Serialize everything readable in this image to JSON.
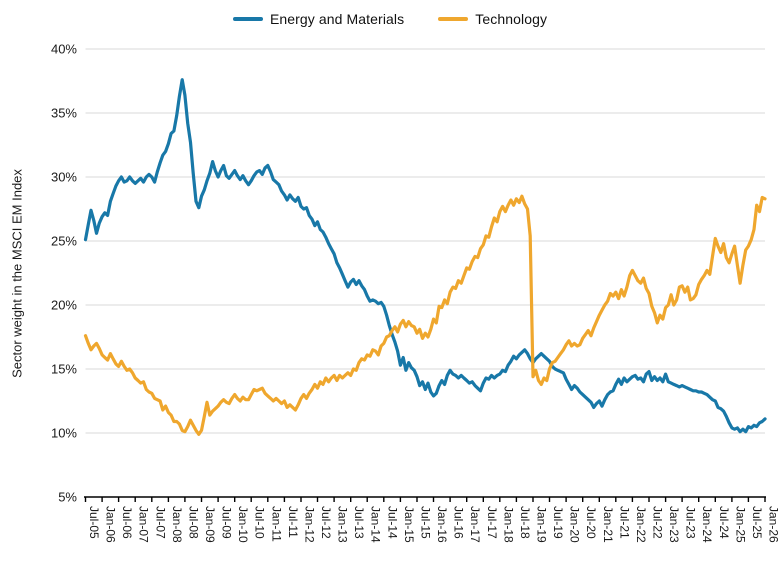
{
  "chart_data": {
    "type": "line",
    "title": "",
    "ylabel": "Sector weight in the MSCI EM Index",
    "xlabel": "",
    "ylim": [
      5,
      40
    ],
    "yticks": [
      "40%",
      "35%",
      "30%",
      "25%",
      "20%",
      "15%",
      "10%",
      "5%"
    ],
    "ytick_values": [
      40,
      35,
      30,
      25,
      20,
      15,
      10,
      5
    ],
    "grid": "horizontal-only",
    "legend_position": "top-center",
    "frequency": "monthly",
    "x_start": "Jul-2005",
    "x_end": "Jan-2026",
    "x_tick_labels": [
      "Jul-05",
      "Jan-06",
      "Jul-06",
      "Jan-07",
      "Jul-07",
      "Jan-08",
      "Jul-08",
      "Jan-09",
      "Jul-09",
      "Jan-10",
      "Jul-10",
      "Jan-11",
      "Jul-11",
      "Jan-12",
      "Jul-12",
      "Jan-13",
      "Jul-13",
      "Jan-14",
      "Jul-14",
      "Jan-15",
      "Jul-15",
      "Jan-16",
      "Jul-16",
      "Jan-17",
      "Jul-17",
      "Jan-18",
      "Jul-18",
      "Jan-19",
      "Jul-19",
      "Jan-20",
      "Jul-20",
      "Jan-21",
      "Jul-21",
      "Jan-22",
      "Jul-22",
      "Jan-23",
      "Jul-23",
      "Jan-24",
      "Jul-24",
      "Jan-25",
      "Jul-25",
      "Jan-26"
    ],
    "colors": {
      "axis": "#000000",
      "grid": "#d9d9d9",
      "tick_text": "#1a1a1a"
    },
    "series": [
      {
        "name": "Energy and Materials",
        "color": "#1878a8",
        "values": [
          25.1,
          26.3,
          27.4,
          26.6,
          25.6,
          26.4,
          26.9,
          27.2,
          27.0,
          28.1,
          28.7,
          29.3,
          29.7,
          30.0,
          29.6,
          29.7,
          30.0,
          29.7,
          29.5,
          29.7,
          29.9,
          29.6,
          30.0,
          30.2,
          30.0,
          29.6,
          30.4,
          31.1,
          31.7,
          32.0,
          32.6,
          33.4,
          33.6,
          34.8,
          36.3,
          37.6,
          36.4,
          34.2,
          32.7,
          30.3,
          28.1,
          27.6,
          28.5,
          29.0,
          29.7,
          30.3,
          31.2,
          30.5,
          30.0,
          30.5,
          30.9,
          30.1,
          29.9,
          30.2,
          30.5,
          30.1,
          29.8,
          30.1,
          29.7,
          29.4,
          29.7,
          30.1,
          30.4,
          30.5,
          30.2,
          30.7,
          30.9,
          30.4,
          29.8,
          29.6,
          29.4,
          28.9,
          28.6,
          28.2,
          28.6,
          28.3,
          28.1,
          28.4,
          27.7,
          27.5,
          27.6,
          27.0,
          26.7,
          26.2,
          26.5,
          25.9,
          25.7,
          25.3,
          24.8,
          24.4,
          24.0,
          23.3,
          22.9,
          22.4,
          21.9,
          21.4,
          21.8,
          22.0,
          21.6,
          21.9,
          21.5,
          21.2,
          20.7,
          20.3,
          20.4,
          20.3,
          20.1,
          20.2,
          19.9,
          19.2,
          18.4,
          17.7,
          17.1,
          16.4,
          15.3,
          15.9,
          14.9,
          15.5,
          15.1,
          14.9,
          14.4,
          13.7,
          14.0,
          13.4,
          13.9,
          13.2,
          12.9,
          13.1,
          13.7,
          14.1,
          13.8,
          14.5,
          14.9,
          14.6,
          14.5,
          14.3,
          14.5,
          14.3,
          14.1,
          13.9,
          14.0,
          13.7,
          13.5,
          13.3,
          13.9,
          14.3,
          14.2,
          14.5,
          14.3,
          14.5,
          14.6,
          14.9,
          14.8,
          15.3,
          15.6,
          16.0,
          15.8,
          16.1,
          16.3,
          16.5,
          16.2,
          15.8,
          15.5,
          15.8,
          16.0,
          16.2,
          16.0,
          15.8,
          15.6,
          15.2,
          15.0,
          14.9,
          14.8,
          14.7,
          14.2,
          13.8,
          13.4,
          13.7,
          13.5,
          13.2,
          13.0,
          12.8,
          12.6,
          12.4,
          12.0,
          12.3,
          12.5,
          12.1,
          12.6,
          13.0,
          13.2,
          13.3,
          13.8,
          14.2,
          13.8,
          14.3,
          14.0,
          14.2,
          14.4,
          14.5,
          14.2,
          14.3,
          14.0,
          14.6,
          14.8,
          14.1,
          14.4,
          14.1,
          14.3,
          14.0,
          14.6,
          14.0,
          13.9,
          13.8,
          13.7,
          13.6,
          13.7,
          13.6,
          13.5,
          13.4,
          13.3,
          13.3,
          13.2,
          13.2,
          13.1,
          13.0,
          12.8,
          12.6,
          12.5,
          12.0,
          11.9,
          11.7,
          11.3,
          10.8,
          10.4,
          10.3,
          10.4,
          10.1,
          10.3,
          10.1,
          10.5,
          10.4,
          10.6,
          10.5,
          10.8,
          10.9,
          11.1
        ]
      },
      {
        "name": "Technology",
        "color": "#efa72e",
        "values": [
          17.6,
          17.0,
          16.5,
          16.8,
          17.0,
          16.6,
          16.1,
          15.9,
          15.7,
          16.2,
          15.8,
          15.4,
          15.2,
          15.6,
          15.2,
          14.9,
          15.0,
          14.7,
          14.3,
          14.1,
          13.9,
          14.0,
          13.4,
          13.2,
          13.1,
          12.7,
          12.6,
          12.5,
          11.8,
          12.1,
          11.6,
          11.4,
          10.9,
          10.9,
          10.7,
          10.2,
          10.1,
          10.5,
          11.0,
          10.6,
          10.2,
          9.9,
          10.2,
          11.3,
          12.4,
          11.4,
          11.7,
          11.9,
          12.1,
          12.4,
          12.6,
          12.4,
          12.3,
          12.7,
          13.0,
          12.7,
          12.5,
          12.8,
          12.6,
          12.6,
          13.0,
          13.4,
          13.3,
          13.4,
          13.5,
          13.1,
          12.9,
          12.7,
          12.5,
          12.7,
          12.5,
          12.3,
          12.5,
          12.0,
          12.2,
          12.0,
          11.8,
          12.2,
          12.7,
          13.0,
          12.7,
          13.1,
          13.4,
          13.8,
          13.5,
          14.0,
          13.8,
          14.3,
          14.0,
          14.3,
          14.5,
          14.1,
          14.5,
          14.3,
          14.5,
          14.7,
          14.5,
          15.0,
          14.9,
          15.5,
          15.8,
          15.7,
          16.1,
          16.0,
          16.5,
          16.4,
          16.1,
          16.8,
          17.0,
          17.5,
          17.6,
          18.0,
          18.3,
          17.9,
          18.5,
          18.8,
          18.3,
          18.7,
          18.4,
          18.3,
          17.8,
          18.1,
          17.4,
          17.8,
          17.5,
          18.1,
          18.9,
          18.6,
          19.9,
          19.8,
          20.4,
          20.1,
          21.0,
          21.4,
          21.3,
          21.9,
          21.7,
          22.3,
          22.9,
          22.8,
          23.4,
          23.8,
          23.7,
          24.4,
          24.7,
          25.4,
          25.3,
          26.1,
          26.8,
          26.5,
          27.3,
          27.7,
          27.3,
          27.8,
          28.2,
          27.8,
          28.3,
          28.0,
          28.5,
          27.9,
          27.5,
          25.4,
          14.4,
          14.9,
          14.1,
          13.8,
          14.3,
          14.1,
          15.0,
          15.5,
          15.6,
          15.9,
          16.2,
          16.5,
          16.9,
          17.2,
          16.8,
          17.0,
          16.8,
          16.9,
          17.4,
          17.7,
          18.0,
          17.6,
          18.2,
          18.7,
          19.2,
          19.6,
          20.0,
          20.3,
          20.9,
          20.7,
          21.0,
          20.5,
          21.2,
          20.7,
          21.4,
          22.3,
          22.7,
          22.3,
          21.9,
          21.7,
          22.1,
          21.3,
          20.9,
          19.9,
          19.4,
          18.6,
          19.2,
          18.9,
          19.8,
          20.0,
          20.8,
          20.0,
          20.4,
          21.4,
          21.5,
          21.0,
          21.4,
          20.4,
          20.5,
          20.8,
          21.6,
          22.0,
          22.3,
          22.7,
          22.4,
          23.8,
          25.2,
          24.6,
          24.1,
          24.8,
          23.7,
          23.3,
          24.0,
          24.6,
          23.1,
          21.7,
          23.1,
          24.3,
          24.6,
          25.1,
          25.9,
          27.8,
          27.3,
          28.4,
          28.3
        ]
      }
    ]
  }
}
